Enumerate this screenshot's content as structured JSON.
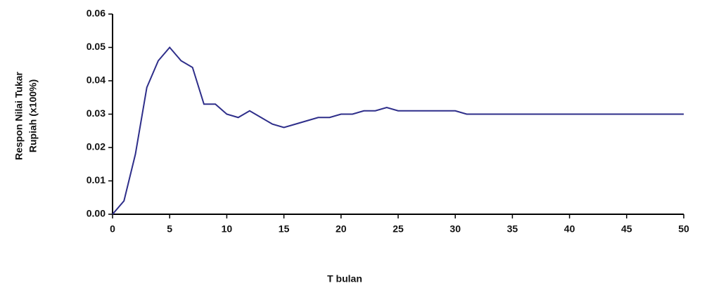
{
  "chart_data": {
    "type": "line",
    "y_label": [
      "Respon Nilai Tukar",
      "Rupiah (x100%)"
    ],
    "x_label": "T bulan",
    "x": [
      0,
      1,
      2,
      3,
      4,
      5,
      6,
      7,
      8,
      9,
      10,
      11,
      12,
      13,
      14,
      15,
      16,
      17,
      18,
      19,
      20,
      21,
      22,
      23,
      24,
      25,
      26,
      27,
      28,
      29,
      30,
      31,
      32,
      33,
      34,
      35,
      36,
      37,
      38,
      39,
      40,
      41,
      42,
      43,
      44,
      45,
      46,
      47,
      48,
      49,
      50
    ],
    "values": [
      0.0,
      0.004,
      0.018,
      0.038,
      0.046,
      0.05,
      0.046,
      0.044,
      0.033,
      0.033,
      0.03,
      0.029,
      0.031,
      0.029,
      0.027,
      0.026,
      0.027,
      0.028,
      0.029,
      0.029,
      0.03,
      0.03,
      0.031,
      0.031,
      0.032,
      0.031,
      0.031,
      0.031,
      0.031,
      0.031,
      0.031,
      0.03,
      0.03,
      0.03,
      0.03,
      0.03,
      0.03,
      0.03,
      0.03,
      0.03,
      0.03,
      0.03,
      0.03,
      0.03,
      0.03,
      0.03,
      0.03,
      0.03,
      0.03,
      0.03,
      0.03
    ],
    "color": "#2e2e8a",
    "xlim": [
      0,
      50
    ],
    "xticks": [
      0,
      5,
      10,
      15,
      20,
      25,
      30,
      35,
      40,
      45,
      50
    ],
    "ylim": [
      0,
      0.06
    ],
    "yticks": [
      {
        "value": 0,
        "label": "0.00"
      },
      {
        "value": 0.01,
        "label": "0.01"
      },
      {
        "value": 0.02,
        "label": "0.02"
      },
      {
        "value": 0.03,
        "label": "0.03"
      },
      {
        "value": 0.04,
        "label": "0.04"
      },
      {
        "value": 0.05,
        "label": "0.05"
      },
      {
        "value": 0.06,
        "label": "0.06"
      }
    ],
    "grid": false
  }
}
